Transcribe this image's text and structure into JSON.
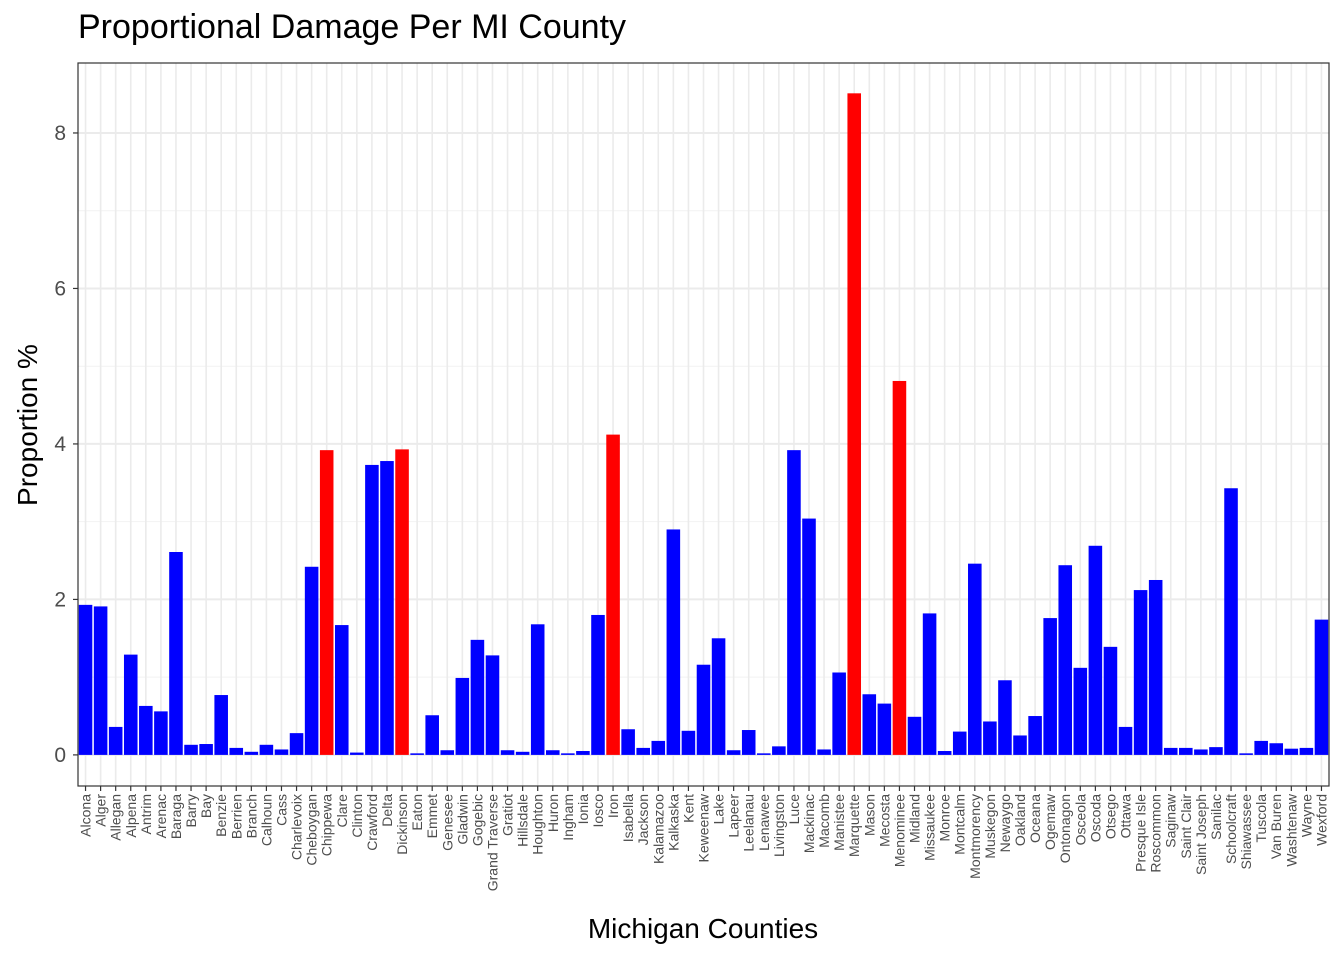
{
  "chart_data": {
    "type": "bar",
    "title": "Proportional Damage Per MI County",
    "xlabel": "Michigan Counties",
    "ylabel": "Proportion %",
    "ylim": [
      -0.4,
      8.9
    ],
    "yticks": [
      0,
      2,
      4,
      6,
      8
    ],
    "grid": true,
    "legend": "none",
    "colors": {
      "normal": "#0000ff",
      "highlight": "#ff0000"
    },
    "categories": [
      "Alcona",
      "Alger",
      "Allegan",
      "Alpena",
      "Antrim",
      "Arenac",
      "Baraga",
      "Barry",
      "Bay",
      "Benzie",
      "Berrien",
      "Branch",
      "Calhoun",
      "Cass",
      "Charlevoix",
      "Cheboygan",
      "Chippewa",
      "Clare",
      "Clinton",
      "Crawford",
      "Delta",
      "Dickinson",
      "Eaton",
      "Emmet",
      "Genesee",
      "Gladwin",
      "Gogebic",
      "Grand Traverse",
      "Gratiot",
      "Hillsdale",
      "Houghton",
      "Huron",
      "Ingham",
      "Ionia",
      "Iosco",
      "Iron",
      "Isabella",
      "Jackson",
      "Kalamazoo",
      "Kalkaska",
      "Kent",
      "Keweenaw",
      "Lake",
      "Lapeer",
      "Leelanau",
      "Lenawee",
      "Livingston",
      "Luce",
      "Mackinac",
      "Macomb",
      "Manistee",
      "Marquette",
      "Mason",
      "Mecosta",
      "Menominee",
      "Midland",
      "Missaukee",
      "Monroe",
      "Montcalm",
      "Montmorency",
      "Muskegon",
      "Newaygo",
      "Oakland",
      "Oceana",
      "Ogemaw",
      "Ontonagon",
      "Osceola",
      "Oscoda",
      "Otsego",
      "Ottawa",
      "Presque Isle",
      "Roscommon",
      "Saginaw",
      "Saint Clair",
      "Saint Joseph",
      "Sanilac",
      "Schoolcraft",
      "Shiawassee",
      "Tuscola",
      "Van Buren",
      "Washtenaw",
      "Wayne",
      "Wexford"
    ],
    "values": [
      1.93,
      1.91,
      0.36,
      1.29,
      0.63,
      0.56,
      2.61,
      0.13,
      0.14,
      0.77,
      0.09,
      0.04,
      0.13,
      0.07,
      0.28,
      2.42,
      3.92,
      1.67,
      0.03,
      3.73,
      3.78,
      3.93,
      0.02,
      0.51,
      0.06,
      0.99,
      1.48,
      1.28,
      0.06,
      0.04,
      1.68,
      0.06,
      0.02,
      0.05,
      1.8,
      4.12,
      0.33,
      0.09,
      0.18,
      2.9,
      0.31,
      1.16,
      1.5,
      0.06,
      0.32,
      0.02,
      0.11,
      3.92,
      3.04,
      0.07,
      1.06,
      8.51,
      0.78,
      0.66,
      4.81,
      0.49,
      1.82,
      0.05,
      0.3,
      2.46,
      0.43,
      0.96,
      0.25,
      0.5,
      1.76,
      2.44,
      1.12,
      2.69,
      1.39,
      0.36,
      2.12,
      2.25,
      0.09,
      0.09,
      0.07,
      0.1,
      3.43,
      0.02,
      0.18,
      0.15,
      0.08,
      0.09,
      1.74
    ],
    "highlighted": [
      "Chippewa",
      "Dickinson",
      "Iron",
      "Marquette",
      "Menominee"
    ]
  }
}
